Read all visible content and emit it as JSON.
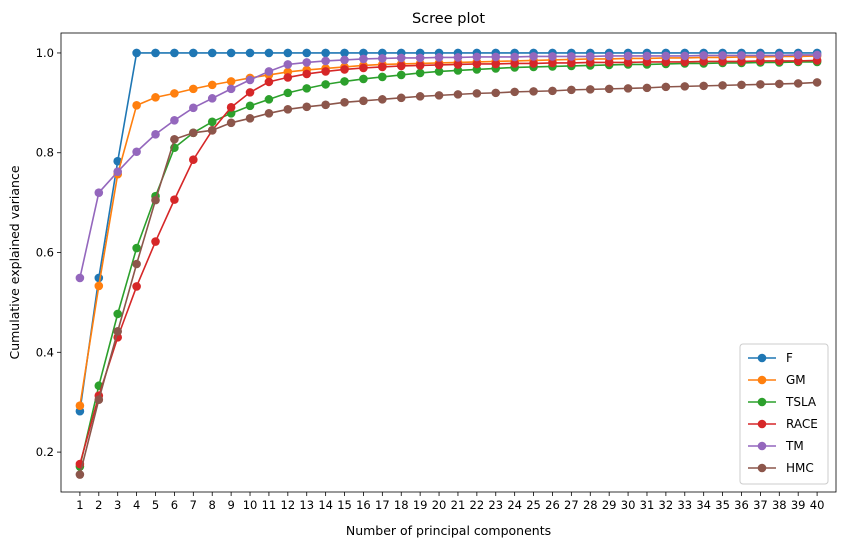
{
  "chart_data": {
    "type": "line",
    "title": "Scree plot",
    "xlabel": "Number of principal components",
    "ylabel": "Cumulative explained variance",
    "x": [
      1,
      2,
      3,
      4,
      5,
      6,
      7,
      8,
      9,
      10,
      11,
      12,
      13,
      14,
      15,
      16,
      17,
      18,
      19,
      20,
      21,
      22,
      23,
      24,
      25,
      26,
      27,
      28,
      29,
      30,
      31,
      32,
      33,
      34,
      35,
      36,
      37,
      38,
      39,
      40
    ],
    "yticks": [
      0.2,
      0.4,
      0.6,
      0.8,
      1.0
    ],
    "ylim": [
      0.12,
      1.04
    ],
    "xlim": [
      0,
      41
    ],
    "grid": false,
    "legend_position": "bottom-right",
    "series": [
      {
        "name": "F",
        "color": "#1f77b4",
        "values": [
          0.282,
          0.549,
          0.783,
          1.0,
          1.0,
          1.0,
          1.0,
          1.0,
          1.0,
          1.0,
          1.0,
          1.0,
          1.0,
          1.0,
          1.0,
          1.0,
          1.0,
          1.0,
          1.0,
          1.0,
          1.0,
          1.0,
          1.0,
          1.0,
          1.0,
          1.0,
          1.0,
          1.0,
          1.0,
          1.0,
          1.0,
          1.0,
          1.0,
          1.0,
          1.0,
          1.0,
          1.0,
          1.0,
          1.0,
          1.0
        ]
      },
      {
        "name": "GM",
        "color": "#ff7f0e",
        "values": [
          0.293,
          0.533,
          0.757,
          0.895,
          0.911,
          0.919,
          0.928,
          0.936,
          0.943,
          0.95,
          0.956,
          0.962,
          0.966,
          0.969,
          0.972,
          0.975,
          0.977,
          0.978,
          0.979,
          0.98,
          0.981,
          0.982,
          0.983,
          0.984,
          0.985,
          0.986,
          0.987,
          0.988,
          0.988,
          0.989,
          0.989,
          0.99,
          0.99,
          0.991,
          0.991,
          0.992,
          0.992,
          0.993,
          0.993,
          0.994
        ]
      },
      {
        "name": "TSLA",
        "color": "#2ca02c",
        "values": [
          0.171,
          0.333,
          0.477,
          0.609,
          0.713,
          0.81,
          0.84,
          0.862,
          0.879,
          0.894,
          0.907,
          0.92,
          0.929,
          0.937,
          0.943,
          0.948,
          0.952,
          0.956,
          0.96,
          0.963,
          0.965,
          0.967,
          0.969,
          0.971,
          0.972,
          0.973,
          0.974,
          0.975,
          0.976,
          0.977,
          0.977,
          0.978,
          0.979,
          0.979,
          0.98,
          0.98,
          0.981,
          0.981,
          0.982,
          0.982
        ]
      },
      {
        "name": "RACE",
        "color": "#d62728",
        "values": [
          0.176,
          0.313,
          0.43,
          0.532,
          0.622,
          0.706,
          0.786,
          0.845,
          0.891,
          0.921,
          0.942,
          0.951,
          0.958,
          0.963,
          0.967,
          0.97,
          0.972,
          0.974,
          0.975,
          0.976,
          0.977,
          0.978,
          0.978,
          0.979,
          0.979,
          0.98,
          0.98,
          0.981,
          0.981,
          0.981,
          0.982,
          0.982,
          0.982,
          0.983,
          0.983,
          0.983,
          0.984,
          0.984,
          0.984,
          0.985
        ]
      },
      {
        "name": "TM",
        "color": "#9467bd",
        "values": [
          0.549,
          0.72,
          0.762,
          0.802,
          0.837,
          0.865,
          0.89,
          0.909,
          0.928,
          0.946,
          0.963,
          0.977,
          0.981,
          0.984,
          0.986,
          0.988,
          0.989,
          0.99,
          0.99,
          0.991,
          0.991,
          0.992,
          0.992,
          0.992,
          0.993,
          0.993,
          0.993,
          0.993,
          0.994,
          0.994,
          0.994,
          0.994,
          0.994,
          0.995,
          0.995,
          0.995,
          0.995,
          0.995,
          0.996,
          0.996
        ]
      },
      {
        "name": "HMC",
        "color": "#8c564b",
        "values": [
          0.155,
          0.305,
          0.442,
          0.577,
          0.705,
          0.827,
          0.84,
          0.845,
          0.86,
          0.869,
          0.879,
          0.887,
          0.892,
          0.896,
          0.901,
          0.904,
          0.907,
          0.91,
          0.913,
          0.915,
          0.917,
          0.919,
          0.92,
          0.922,
          0.923,
          0.924,
          0.926,
          0.927,
          0.928,
          0.929,
          0.93,
          0.932,
          0.933,
          0.934,
          0.935,
          0.936,
          0.937,
          0.938,
          0.939,
          0.941
        ]
      }
    ]
  }
}
